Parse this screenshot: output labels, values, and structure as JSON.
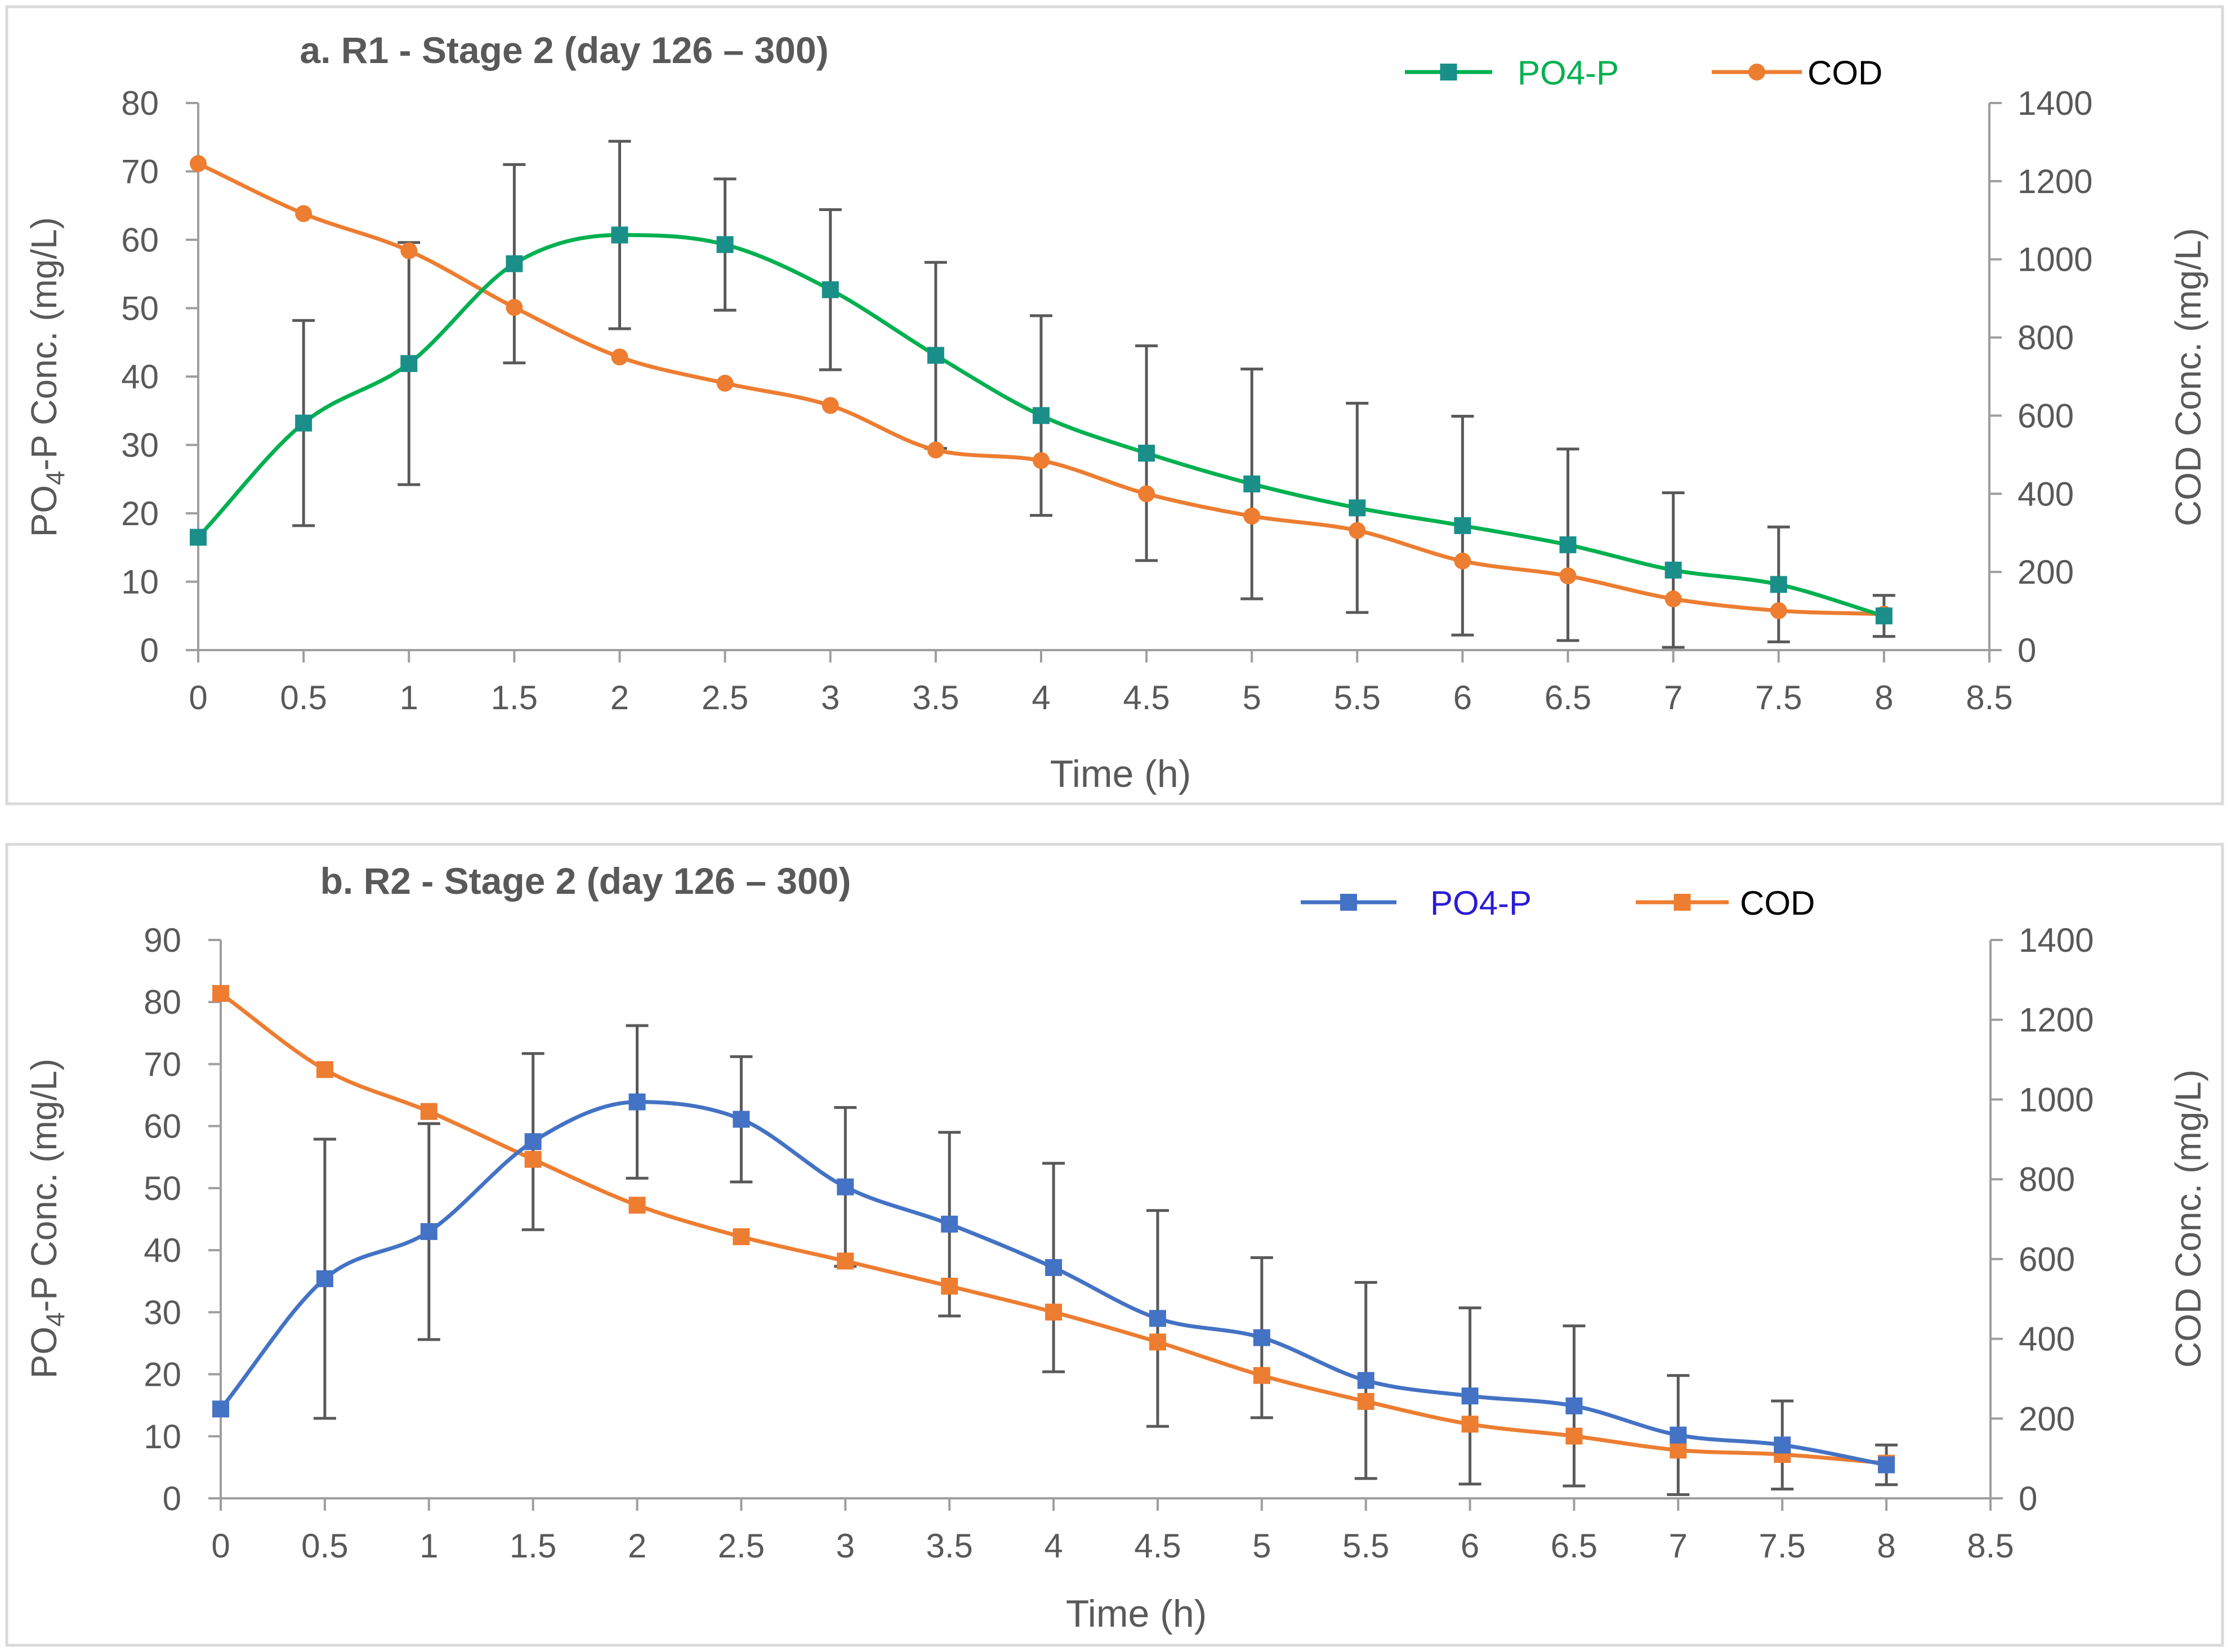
{
  "chart_data": [
    {
      "type": "line",
      "title": "a. R1 - Stage 2 (day 126 – 300)",
      "xlabel": "Time (h)",
      "ylabel_main": "PO",
      "ylabel_sub": "4",
      "ylabel_rest": "-P Conc. (mg/L)",
      "y2label": "COD Conc. (mg/L)",
      "xlim": [
        0,
        8.5
      ],
      "ylim": [
        0,
        80
      ],
      "y2lim": [
        0,
        1400
      ],
      "x_ticks": [
        "0",
        "0.5",
        "1",
        "1.5",
        "2",
        "2.5",
        "3",
        "3.5",
        "4",
        "4.5",
        "5",
        "5.5",
        "6",
        "6.5",
        "7",
        "7.5",
        "8",
        "8.5"
      ],
      "y_ticks": [
        "0",
        "10",
        "20",
        "30",
        "40",
        "50",
        "60",
        "70",
        "80"
      ],
      "y2_ticks": [
        "0",
        "200",
        "400",
        "600",
        "800",
        "1000",
        "1200",
        "1400"
      ],
      "x": [
        0,
        0.5,
        1,
        1.5,
        2,
        2.5,
        3,
        3.5,
        4,
        4.5,
        5,
        5.5,
        6,
        6.5,
        7,
        7.5,
        8
      ],
      "series": [
        {
          "name": "PO4-P",
          "axis": "left",
          "color": "#00b050",
          "marker_color": "#1a8f8a",
          "marker": "square",
          "label_color": "#00b050",
          "values": [
            16.5,
            33.2,
            41.9,
            56.5,
            60.7,
            59.3,
            52.7,
            43.1,
            34.3,
            28.8,
            24.3,
            20.8,
            18.2,
            15.4,
            11.7,
            9.6,
            5.0
          ],
          "error": [
            0,
            15,
            17.7,
            14.5,
            13.7,
            9.6,
            11.7,
            13.6,
            14.6,
            15.7,
            16.8,
            15.3,
            16.0,
            14.0,
            11.3,
            8.4,
            3.0
          ]
        },
        {
          "name": "COD",
          "axis": "right",
          "color": "#ed7d31",
          "marker": "circle",
          "label_color": "#000000",
          "values": [
            1245,
            1117,
            1022,
            877,
            750,
            683,
            626,
            512,
            485,
            400,
            343,
            306,
            228,
            190,
            131,
            101,
            92
          ]
        }
      ]
    },
    {
      "type": "line",
      "title": "b. R2 - Stage 2 (day 126 – 300)",
      "xlabel": "Time (h)",
      "ylabel_main": "PO",
      "ylabel_sub": "4",
      "ylabel_rest": "-P Conc. (mg/L)",
      "y2label": "COD Conc. (mg/L)",
      "xlim": [
        0,
        8.5
      ],
      "ylim": [
        0,
        90
      ],
      "y2lim": [
        0,
        1400
      ],
      "x_ticks": [
        "0",
        "0.5",
        "1",
        "1.5",
        "2",
        "2.5",
        "3",
        "3.5",
        "4",
        "4.5",
        "5",
        "5.5",
        "6",
        "6.5",
        "7",
        "7.5",
        "8",
        "8.5"
      ],
      "y_ticks": [
        "0",
        "10",
        "20",
        "30",
        "40",
        "50",
        "60",
        "70",
        "80",
        "90"
      ],
      "y2_ticks": [
        "0",
        "200",
        "400",
        "600",
        "800",
        "1000",
        "1200",
        "1400"
      ],
      "x": [
        0,
        0.5,
        1,
        1.5,
        2,
        2.5,
        3,
        3.5,
        4,
        4.5,
        5,
        5.5,
        6,
        6.5,
        7,
        7.5,
        8
      ],
      "series": [
        {
          "name": "PO4-P",
          "axis": "left",
          "color": "#4472c4",
          "marker_color": "#4472c4",
          "marker": "square",
          "label_color": "#2b1bd6",
          "values": [
            14.4,
            35.4,
            43.0,
            57.5,
            63.9,
            61.1,
            50.2,
            44.2,
            37.2,
            29.0,
            25.9,
            19.0,
            16.5,
            14.9,
            10.2,
            8.6,
            5.4
          ],
          "error": [
            0,
            22.5,
            17.4,
            14.2,
            12.3,
            10.1,
            12.8,
            14.8,
            16.8,
            17.4,
            12.9,
            15.8,
            14.2,
            12.9,
            9.6,
            7.1,
            3.2
          ]
        },
        {
          "name": "COD",
          "axis": "right",
          "color": "#ed7d31",
          "marker": "square",
          "label_color": "#000000",
          "values": [
            1266,
            1075,
            970,
            850,
            735,
            656,
            595,
            532,
            467,
            392,
            308,
            243,
            186,
            156,
            121,
            110,
            88
          ]
        }
      ]
    }
  ]
}
